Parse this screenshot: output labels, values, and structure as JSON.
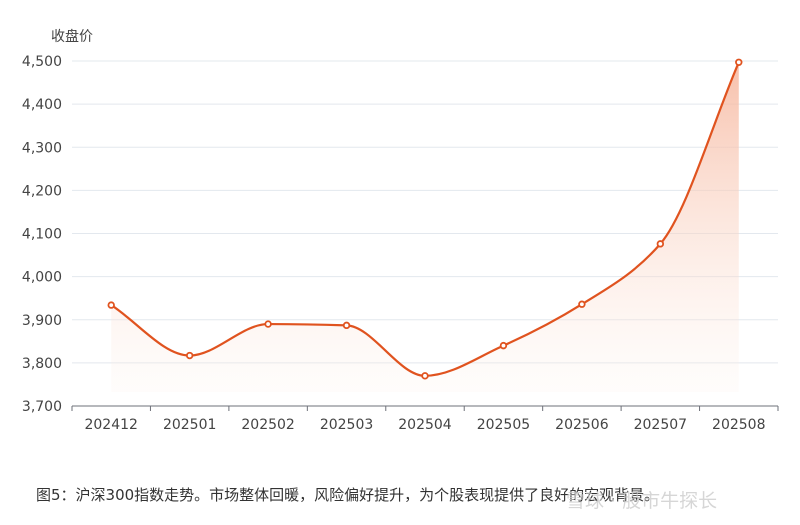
{
  "chart_data": {
    "type": "area",
    "ylabel": "收盘价",
    "categories": [
      "202412",
      "202501",
      "202502",
      "202503",
      "202504",
      "202505",
      "202506",
      "202507",
      "202508"
    ],
    "series": [
      {
        "values": [
          3934,
          3817,
          3890,
          3887,
          3770,
          3840,
          3936,
          4076,
          4497
        ]
      }
    ],
    "ylim": [
      3700,
      4500
    ],
    "yticks": [
      "3,700",
      "3,800",
      "3,900",
      "4,000",
      "4,100",
      "4,200",
      "4,300",
      "4,400",
      "4,500"
    ],
    "grid": true,
    "smooth": true,
    "line_color": "#e0531f",
    "fill_color": "#f6b59c"
  },
  "caption": "图5：沪深300指数走势。市场整体回暖，风险偏好提升，为个股表现提供了良好的宏观背景。",
  "watermark": "雪球 · 股市牛探长"
}
